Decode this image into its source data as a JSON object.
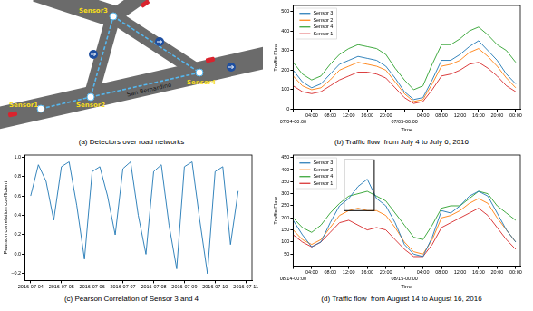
{
  "diagram": {
    "title": "(a) Detectors over road networks",
    "nodes": [
      {
        "label": "Sensor1"
      },
      {
        "label": "Sensor2"
      },
      {
        "label": "Sensor3"
      },
      {
        "label": "Sensor4"
      }
    ],
    "edges": [
      [
        0,
        1
      ],
      [
        1,
        2
      ],
      [
        2,
        3
      ],
      [
        1,
        3
      ]
    ],
    "road_label": "San Bernardino"
  },
  "chart_data": [
    {
      "type": "line",
      "title": "(b) Traffic flow  from July 4 to July 6, 2016",
      "xlabel": "Time",
      "ylabel": "Traffic Flow",
      "x": [
        0,
        2,
        4,
        6,
        8,
        10,
        12,
        14,
        16,
        18,
        20,
        22,
        24,
        26,
        28,
        30,
        32,
        34,
        36,
        38,
        40,
        42,
        44,
        46,
        48
      ],
      "series": [
        {
          "name": "Sensor 3",
          "color": "#1f77b4",
          "values": [
            200,
            140,
            110,
            130,
            180,
            230,
            250,
            270,
            260,
            250,
            220,
            160,
            90,
            50,
            60,
            150,
            250,
            250,
            280,
            320,
            350,
            300,
            250,
            180,
            130
          ]
        },
        {
          "name": "Sensor 2",
          "color": "#ff7f0e",
          "values": [
            170,
            120,
            100,
            110,
            150,
            200,
            220,
            240,
            230,
            220,
            200,
            140,
            80,
            40,
            50,
            130,
            220,
            230,
            250,
            290,
            310,
            270,
            220,
            160,
            110
          ]
        },
        {
          "name": "Sensor 4",
          "color": "#2ca02c",
          "values": [
            240,
            180,
            150,
            170,
            230,
            280,
            310,
            330,
            320,
            310,
            280,
            210,
            150,
            100,
            120,
            230,
            330,
            330,
            360,
            400,
            420,
            380,
            330,
            300,
            240
          ]
        },
        {
          "name": "Sensor 1",
          "color": "#d62728",
          "values": [
            120,
            90,
            80,
            90,
            120,
            150,
            170,
            190,
            190,
            180,
            160,
            110,
            60,
            30,
            40,
            100,
            170,
            180,
            200,
            230,
            240,
            210,
            170,
            120,
            90
          ]
        }
      ],
      "xlim": [
        0,
        49
      ],
      "xticks": [
        {
          "value": 0,
          "label": "07/04-00:00"
        },
        {
          "value": 4,
          "label": "04:00"
        },
        {
          "value": 8,
          "label": "08:00"
        },
        {
          "value": 12,
          "label": "12:00"
        },
        {
          "value": 16,
          "label": "16:00"
        },
        {
          "value": 20,
          "label": "20:00"
        },
        {
          "value": 24,
          "label": "07/05-00:00"
        },
        {
          "value": 28,
          "label": "04:00"
        },
        {
          "value": 32,
          "label": "08:00"
        },
        {
          "value": 36,
          "label": "12:00"
        },
        {
          "value": 40,
          "label": "16:00"
        },
        {
          "value": 44,
          "label": "20:00"
        },
        {
          "value": 48,
          "label": "00:00"
        }
      ],
      "ylim": [
        0,
        530
      ],
      "yticks": [
        0,
        100,
        200,
        300,
        400,
        500
      ],
      "grid": false,
      "legend": "upper left"
    },
    {
      "type": "line",
      "title": "(c) Pearson Correlation of Sensor 3 and 4",
      "ylabel": "Pearson correlation coefficient",
      "x": [
        0,
        0.25,
        0.5,
        0.75,
        1,
        1.25,
        1.5,
        1.75,
        2,
        2.25,
        2.5,
        2.75,
        3,
        3.25,
        3.5,
        3.75,
        4,
        4.25,
        4.5,
        4.75,
        5,
        5.25,
        5.5,
        5.75,
        6,
        6.25,
        6.5,
        6.75
      ],
      "values": [
        0.6,
        0.92,
        0.75,
        0.35,
        0.9,
        0.95,
        0.5,
        -0.05,
        0.85,
        0.9,
        0.6,
        0.2,
        0.88,
        0.95,
        0.4,
        0.0,
        0.85,
        0.92,
        0.3,
        -0.15,
        0.9,
        0.95,
        0.35,
        -0.2,
        0.85,
        0.9,
        0.1,
        0.65
      ],
      "color": "#1f77b4",
      "xlim": [
        -0.2,
        7.2
      ],
      "xticks": [
        {
          "value": 0,
          "label": "2016-07-04"
        },
        {
          "value": 1,
          "label": "2016-07-05"
        },
        {
          "value": 2,
          "label": "2016-07-06"
        },
        {
          "value": 3,
          "label": "2016-07-07"
        },
        {
          "value": 4,
          "label": "2016-07-08"
        },
        {
          "value": 5,
          "label": "2016-07-09"
        },
        {
          "value": 6,
          "label": "2016-07-10"
        },
        {
          "value": 7,
          "label": "2016-07-11"
        }
      ],
      "ylim": [
        -0.27,
        1.02
      ],
      "yticks": [
        {
          "value": -0.2,
          "label": "−0.2"
        },
        {
          "value": 0,
          "label": "0.0"
        },
        0.2,
        0.4,
        0.6,
        0.8,
        {
          "value": 1,
          "label": "1.0"
        }
      ],
      "grid": false
    },
    {
      "type": "line",
      "title": "(d) Traffic flow  from August 14 to August 16, 2016",
      "xlabel": "Time",
      "ylabel": "Traffic Flow",
      "x": [
        0,
        2,
        4,
        6,
        8,
        10,
        12,
        14,
        16,
        18,
        20,
        22,
        24,
        26,
        28,
        30,
        32,
        34,
        36,
        38,
        40,
        42,
        44,
        46,
        48
      ],
      "series": [
        {
          "name": "Sensor 3",
          "color": "#1f77b4",
          "values": [
            190,
            130,
            80,
            100,
            180,
            250,
            280,
            330,
            360,
            280,
            250,
            180,
            90,
            50,
            40,
            120,
            230,
            220,
            250,
            290,
            310,
            290,
            220,
            150,
            100
          ]
        },
        {
          "name": "Sensor 2",
          "color": "#ff7f0e",
          "values": [
            150,
            110,
            90,
            110,
            160,
            210,
            230,
            240,
            230,
            230,
            210,
            160,
            100,
            60,
            50,
            110,
            200,
            210,
            230,
            260,
            280,
            260,
            200,
            150,
            100
          ]
        },
        {
          "name": "Sensor 4",
          "color": "#2ca02c",
          "values": [
            200,
            160,
            140,
            170,
            220,
            260,
            290,
            300,
            310,
            290,
            270,
            220,
            170,
            120,
            110,
            170,
            240,
            250,
            250,
            280,
            310,
            300,
            250,
            220,
            190
          ]
        },
        {
          "name": "Sensor 1",
          "color": "#d62728",
          "values": [
            130,
            100,
            80,
            100,
            140,
            180,
            190,
            170,
            150,
            160,
            150,
            110,
            70,
            40,
            40,
            90,
            160,
            180,
            200,
            220,
            240,
            210,
            160,
            110,
            70
          ]
        }
      ],
      "box": {
        "x": [
          11,
          17.5
        ],
        "y": [
          230,
          440
        ]
      },
      "xlim": [
        0,
        49
      ],
      "xticks": [
        {
          "value": 0,
          "label": "08/14-00:00"
        },
        {
          "value": 4,
          "label": "04:00"
        },
        {
          "value": 8,
          "label": "08:00"
        },
        {
          "value": 12,
          "label": "12:00"
        },
        {
          "value": 16,
          "label": "16:00"
        },
        {
          "value": 20,
          "label": "20:00"
        },
        {
          "value": 24,
          "label": "08/15-00:00"
        },
        {
          "value": 28,
          "label": "04:00"
        },
        {
          "value": 32,
          "label": "08:00"
        },
        {
          "value": 36,
          "label": "12:00"
        },
        {
          "value": 40,
          "label": "16:00"
        },
        {
          "value": 44,
          "label": "20:00"
        },
        {
          "value": 48,
          "label": "00:00"
        }
      ],
      "ylim": [
        0,
        460
      ],
      "yticks": [
        50,
        100,
        150,
        200,
        250,
        300,
        350,
        400,
        450
      ],
      "grid": false,
      "legend": "upper left"
    }
  ]
}
